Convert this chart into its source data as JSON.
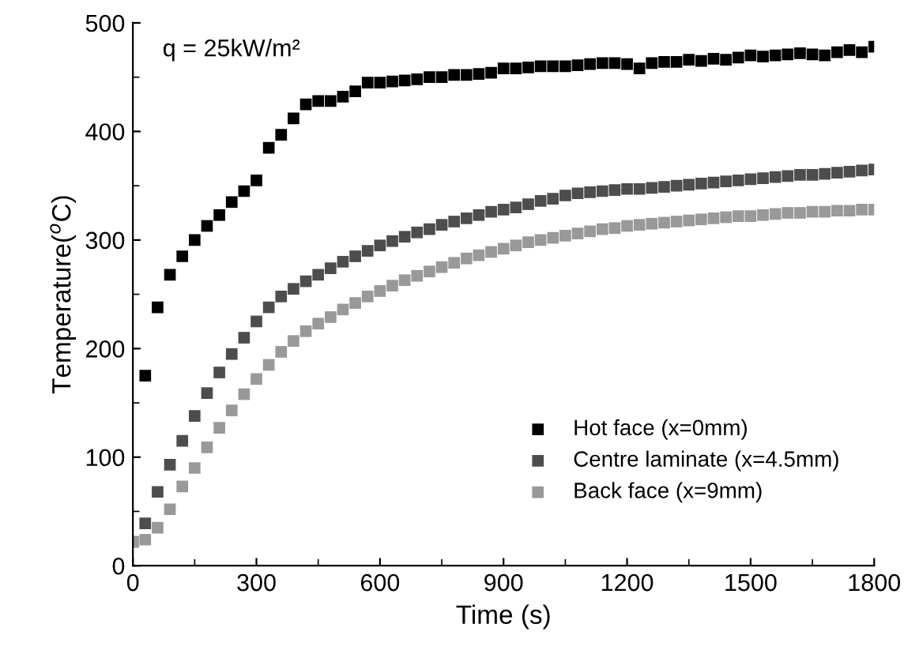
{
  "chart_data": {
    "type": "scatter",
    "xlabel": "Time (s)",
    "ylabel": "Temperature($^{o}$C)",
    "annotations": [
      "q = 25kW/m²"
    ],
    "x": [
      0,
      30,
      60,
      90,
      120,
      150,
      180,
      210,
      240,
      270,
      300,
      330,
      360,
      390,
      420,
      450,
      480,
      510,
      540,
      570,
      600,
      630,
      660,
      690,
      720,
      750,
      780,
      810,
      840,
      870,
      900,
      930,
      960,
      990,
      1020,
      1050,
      1080,
      1110,
      1140,
      1170,
      1200,
      1230,
      1260,
      1290,
      1320,
      1350,
      1380,
      1410,
      1440,
      1470,
      1500,
      1530,
      1560,
      1590,
      1620,
      1650,
      1680,
      1710,
      1740,
      1770,
      1800
    ],
    "series": [
      {
        "name": "Hot face (x=0mm)",
        "color": "#000000",
        "values": [
          null,
          175,
          238,
          268,
          285,
          300,
          313,
          323,
          335,
          345,
          355,
          385,
          397,
          412,
          425,
          428,
          428,
          432,
          437,
          445,
          445,
          446,
          447,
          448,
          450,
          450,
          452,
          452,
          453,
          454,
          458,
          458,
          459,
          460,
          460,
          460,
          461,
          462,
          463,
          463,
          462,
          458,
          463,
          464,
          464,
          466,
          465,
          467,
          466,
          468,
          470,
          469,
          470,
          471,
          472,
          471,
          470,
          473,
          475,
          473,
          478
        ]
      },
      {
        "name": "Centre laminate (x=4.5mm)",
        "color": "#4d4d4d",
        "values": [
          22,
          39,
          68,
          93,
          115,
          138,
          159,
          178,
          195,
          210,
          225,
          238,
          248,
          255,
          262,
          268,
          274,
          280,
          285,
          290,
          295,
          299,
          303,
          307,
          310,
          314,
          317,
          320,
          323,
          326,
          328,
          330,
          333,
          336,
          338,
          341,
          343,
          344,
          345,
          346,
          347,
          347,
          348,
          349,
          350,
          351,
          352,
          353,
          354,
          355,
          356,
          357,
          358,
          359,
          360,
          360,
          361,
          362,
          363,
          364,
          365
        ]
      },
      {
        "name": "Back face (x=9mm)",
        "color": "#999999",
        "values": [
          22,
          24,
          35,
          52,
          73,
          90,
          109,
          127,
          143,
          158,
          172,
          185,
          197,
          207,
          216,
          223,
          229,
          236,
          242,
          248,
          253,
          258,
          263,
          267,
          271,
          275,
          279,
          283,
          286,
          289,
          292,
          295,
          298,
          300,
          302,
          304,
          306,
          308,
          310,
          311,
          313,
          314,
          315,
          316,
          317,
          318,
          319,
          320,
          321,
          322,
          322,
          323,
          324,
          325,
          325,
          326,
          326,
          327,
          327,
          328,
          328
        ]
      }
    ],
    "xlim": [
      0,
      1800
    ],
    "ylim": [
      0,
      500
    ],
    "xticks": [
      0,
      300,
      600,
      900,
      1200,
      1500,
      1800
    ],
    "yticks": [
      0,
      100,
      200,
      300,
      400,
      500
    ],
    "marker": "square",
    "grid": false,
    "legend": "bottom right"
  }
}
